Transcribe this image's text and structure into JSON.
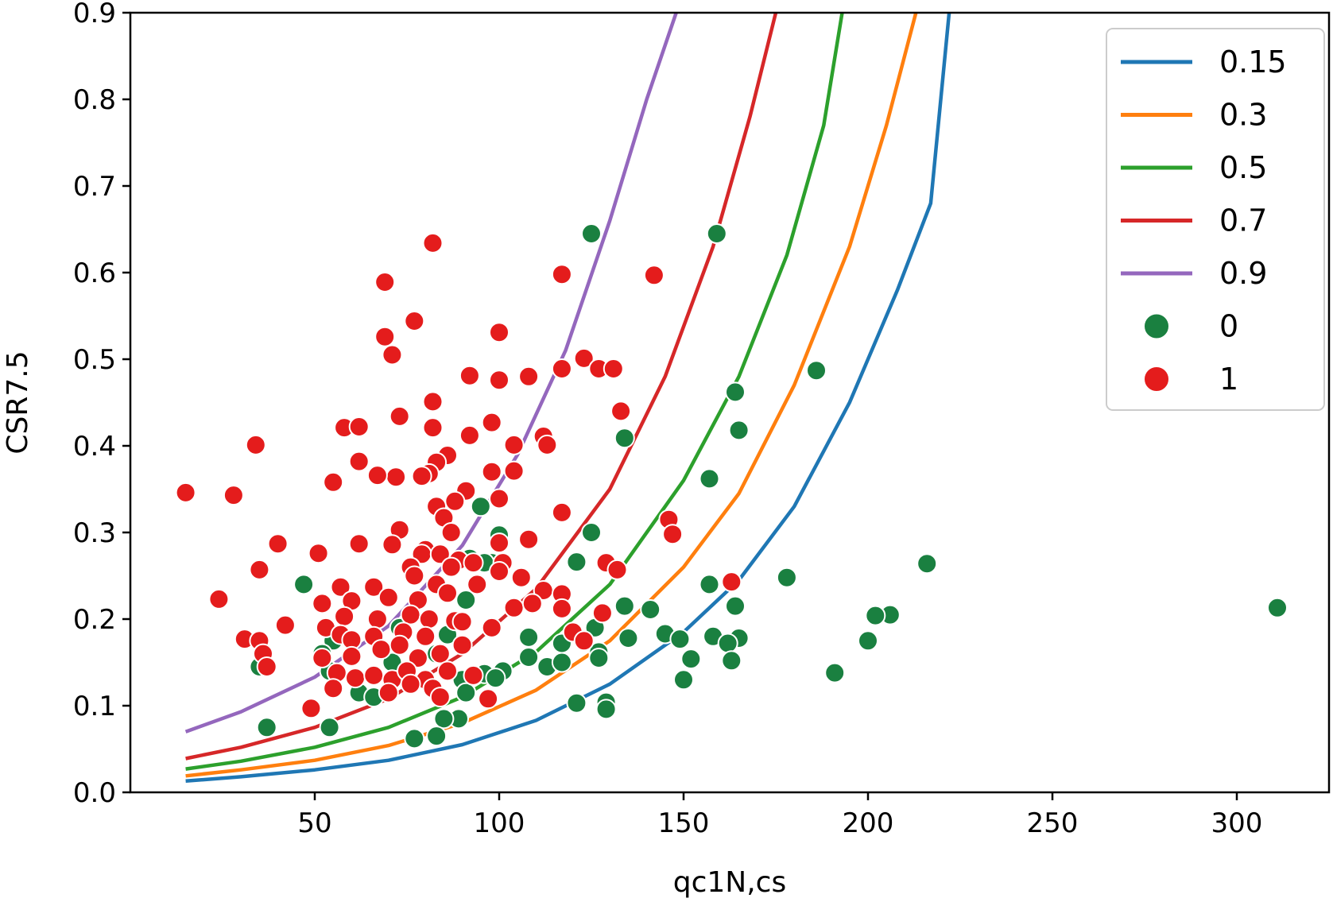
{
  "chart_data": {
    "type": "scatter",
    "title": "",
    "xlabel": "qc1N,cs",
    "ylabel": "CSR7.5",
    "xlim": [
      0,
      325
    ],
    "ylim": [
      0,
      0.9
    ],
    "xticks": [
      50,
      100,
      150,
      200,
      250,
      300
    ],
    "yticks": [
      0.0,
      0.1,
      0.2,
      0.3,
      0.4,
      0.5,
      0.6,
      0.7,
      0.8,
      0.9
    ],
    "xtick_labels": [
      "50",
      "100",
      "150",
      "200",
      "250",
      "300"
    ],
    "ytick_labels": [
      "0.0",
      "0.1",
      "0.2",
      "0.3",
      "0.4",
      "0.5",
      "0.6",
      "0.7",
      "0.8",
      "0.9"
    ],
    "grid": false,
    "legend_position": "top-right",
    "curves": [
      {
        "name": "0.15",
        "color": "#1f77b4",
        "x": [
          15,
          30,
          50,
          70,
          90,
          110,
          130,
          150,
          165,
          180,
          195,
          208,
          217,
          222
        ],
        "y": [
          0.013,
          0.018,
          0.026,
          0.037,
          0.055,
          0.083,
          0.125,
          0.185,
          0.245,
          0.33,
          0.45,
          0.58,
          0.68,
          0.9
        ]
      },
      {
        "name": "0.3",
        "color": "#ff7f0e",
        "x": [
          15,
          30,
          50,
          70,
          90,
          110,
          130,
          150,
          165,
          180,
          195,
          205,
          213
        ],
        "y": [
          0.019,
          0.026,
          0.037,
          0.054,
          0.08,
          0.118,
          0.175,
          0.26,
          0.345,
          0.47,
          0.63,
          0.77,
          0.9
        ]
      },
      {
        "name": "0.5",
        "color": "#2ca02c",
        "x": [
          15,
          30,
          50,
          70,
          90,
          110,
          130,
          150,
          165,
          178,
          188,
          193
        ],
        "y": [
          0.027,
          0.036,
          0.052,
          0.075,
          0.11,
          0.162,
          0.24,
          0.36,
          0.48,
          0.62,
          0.77,
          0.9
        ]
      },
      {
        "name": "0.7",
        "color": "#d62728",
        "x": [
          15,
          30,
          50,
          70,
          90,
          110,
          130,
          145,
          158,
          168,
          175
        ],
        "y": [
          0.039,
          0.052,
          0.075,
          0.108,
          0.16,
          0.235,
          0.35,
          0.48,
          0.63,
          0.78,
          0.9
        ]
      },
      {
        "name": "0.9",
        "color": "#9467bd",
        "x": [
          15,
          30,
          50,
          70,
          90,
          105,
          118,
          130,
          140,
          148
        ],
        "y": [
          0.07,
          0.093,
          0.133,
          0.192,
          0.285,
          0.39,
          0.51,
          0.66,
          0.8,
          0.9
        ]
      }
    ],
    "series": [
      {
        "name": "0",
        "color": "#1a8040",
        "points": [
          [
            125,
            0.645
          ],
          [
            159,
            0.645
          ],
          [
            186,
            0.487
          ],
          [
            164,
            0.462
          ],
          [
            165,
            0.418
          ],
          [
            134,
            0.409
          ],
          [
            157,
            0.362
          ],
          [
            95,
            0.33
          ],
          [
            125,
            0.3
          ],
          [
            100,
            0.297
          ],
          [
            216,
            0.264
          ],
          [
            121,
            0.266
          ],
          [
            98,
            0.265
          ],
          [
            178,
            0.248
          ],
          [
            47,
            0.24
          ],
          [
            157,
            0.24
          ],
          [
            141,
            0.211
          ],
          [
            164,
            0.215
          ],
          [
            134,
            0.215
          ],
          [
            311,
            0.213
          ],
          [
            206,
            0.205
          ],
          [
            202,
            0.204
          ],
          [
            200,
            0.175
          ],
          [
            165,
            0.178
          ],
          [
            158,
            0.18
          ],
          [
            162,
            0.172
          ],
          [
            145,
            0.183
          ],
          [
            149,
            0.177
          ],
          [
            135,
            0.178
          ],
          [
            126,
            0.19
          ],
          [
            108,
            0.179
          ],
          [
            117,
            0.172
          ],
          [
            113,
            0.145
          ],
          [
            117,
            0.15
          ],
          [
            108,
            0.156
          ],
          [
            127,
            0.162
          ],
          [
            127,
            0.155
          ],
          [
            152,
            0.154
          ],
          [
            163,
            0.152
          ],
          [
            191,
            0.138
          ],
          [
            150,
            0.13
          ],
          [
            101,
            0.14
          ],
          [
            96,
            0.137
          ],
          [
            99,
            0.132
          ],
          [
            121,
            0.103
          ],
          [
            129,
            0.104
          ],
          [
            129,
            0.096
          ],
          [
            90,
            0.13
          ],
          [
            92,
            0.27
          ],
          [
            96,
            0.265
          ],
          [
            91,
            0.222
          ],
          [
            86,
            0.182
          ],
          [
            83,
            0.16
          ],
          [
            91,
            0.115
          ],
          [
            89,
            0.085
          ],
          [
            85,
            0.085
          ],
          [
            83,
            0.065
          ],
          [
            77,
            0.062
          ],
          [
            62,
            0.115
          ],
          [
            66,
            0.11
          ],
          [
            71,
            0.15
          ],
          [
            73,
            0.19
          ],
          [
            54,
            0.14
          ],
          [
            55,
            0.175
          ],
          [
            52,
            0.16
          ],
          [
            35,
            0.145
          ],
          [
            37,
            0.075
          ],
          [
            54,
            0.075
          ]
        ]
      },
      {
        "name": "1",
        "color": "#e41c1c",
        "points": [
          [
            82,
            0.634
          ],
          [
            69,
            0.589
          ],
          [
            117,
            0.598
          ],
          [
            142,
            0.597
          ],
          [
            77,
            0.544
          ],
          [
            69,
            0.526
          ],
          [
            100,
            0.531
          ],
          [
            71,
            0.505
          ],
          [
            123,
            0.501
          ],
          [
            127,
            0.489
          ],
          [
            131,
            0.489
          ],
          [
            117,
            0.489
          ],
          [
            108,
            0.48
          ],
          [
            100,
            0.476
          ],
          [
            92,
            0.481
          ],
          [
            82,
            0.451
          ],
          [
            73,
            0.434
          ],
          [
            133,
            0.44
          ],
          [
            98,
            0.427
          ],
          [
            58,
            0.421
          ],
          [
            62,
            0.422
          ],
          [
            82,
            0.421
          ],
          [
            92,
            0.412
          ],
          [
            112,
            0.411
          ],
          [
            113,
            0.401
          ],
          [
            104,
            0.401
          ],
          [
            34,
            0.401
          ],
          [
            86,
            0.389
          ],
          [
            83,
            0.381
          ],
          [
            62,
            0.382
          ],
          [
            98,
            0.37
          ],
          [
            104,
            0.371
          ],
          [
            81,
            0.368
          ],
          [
            79,
            0.365
          ],
          [
            72,
            0.364
          ],
          [
            67,
            0.366
          ],
          [
            15,
            0.346
          ],
          [
            28,
            0.343
          ],
          [
            55,
            0.358
          ],
          [
            91,
            0.348
          ],
          [
            100,
            0.339
          ],
          [
            88,
            0.336
          ],
          [
            83,
            0.33
          ],
          [
            117,
            0.323
          ],
          [
            146,
            0.315
          ],
          [
            147,
            0.298
          ],
          [
            85,
            0.317
          ],
          [
            73,
            0.303
          ],
          [
            87,
            0.3
          ],
          [
            108,
            0.292
          ],
          [
            40,
            0.287
          ],
          [
            62,
            0.287
          ],
          [
            71,
            0.286
          ],
          [
            80,
            0.28
          ],
          [
            79,
            0.275
          ],
          [
            84,
            0.275
          ],
          [
            100,
            0.288
          ],
          [
            51,
            0.276
          ],
          [
            89,
            0.268
          ],
          [
            93,
            0.265
          ],
          [
            101,
            0.265
          ],
          [
            129,
            0.265
          ],
          [
            132,
            0.257
          ],
          [
            35,
            0.257
          ],
          [
            76,
            0.26
          ],
          [
            87,
            0.26
          ],
          [
            100,
            0.255
          ],
          [
            106,
            0.248
          ],
          [
            57,
            0.237
          ],
          [
            66,
            0.237
          ],
          [
            77,
            0.25
          ],
          [
            83,
            0.24
          ],
          [
            94,
            0.24
          ],
          [
            112,
            0.233
          ],
          [
            117,
            0.229
          ],
          [
            24,
            0.223
          ],
          [
            52,
            0.218
          ],
          [
            60,
            0.221
          ],
          [
            70,
            0.225
          ],
          [
            78,
            0.222
          ],
          [
            86,
            0.23
          ],
          [
            104,
            0.213
          ],
          [
            109,
            0.218
          ],
          [
            117,
            0.212
          ],
          [
            128,
            0.207
          ],
          [
            58,
            0.203
          ],
          [
            67,
            0.2
          ],
          [
            76,
            0.205
          ],
          [
            81,
            0.2
          ],
          [
            88,
            0.198
          ],
          [
            90,
            0.197
          ],
          [
            42,
            0.193
          ],
          [
            53,
            0.19
          ],
          [
            57,
            0.182
          ],
          [
            60,
            0.176
          ],
          [
            66,
            0.18
          ],
          [
            74,
            0.185
          ],
          [
            80,
            0.18
          ],
          [
            98,
            0.19
          ],
          [
            120,
            0.185
          ],
          [
            123,
            0.175
          ],
          [
            31,
            0.177
          ],
          [
            35,
            0.175
          ],
          [
            36,
            0.16
          ],
          [
            37,
            0.145
          ],
          [
            52,
            0.155
          ],
          [
            60,
            0.157
          ],
          [
            68,
            0.165
          ],
          [
            73,
            0.17
          ],
          [
            78,
            0.155
          ],
          [
            84,
            0.16
          ],
          [
            90,
            0.17
          ],
          [
            56,
            0.138
          ],
          [
            61,
            0.132
          ],
          [
            66,
            0.135
          ],
          [
            71,
            0.13
          ],
          [
            75,
            0.14
          ],
          [
            80,
            0.13
          ],
          [
            86,
            0.14
          ],
          [
            93,
            0.135
          ],
          [
            55,
            0.12
          ],
          [
            70,
            0.115
          ],
          [
            76,
            0.125
          ],
          [
            82,
            0.12
          ],
          [
            84,
            0.11
          ],
          [
            97,
            0.108
          ],
          [
            49,
            0.097
          ],
          [
            163,
            0.243
          ]
        ]
      }
    ]
  }
}
